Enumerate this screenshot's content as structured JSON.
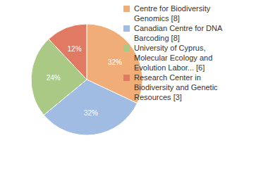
{
  "chart_data": {
    "type": "pie",
    "categories": [
      "Centre for Biodiversity Genomics [8]",
      "Canadian Centre for DNA Barcoding [8]",
      "University of Cyprus, Molecular Ecology and Evolution Labor... [6]",
      "Research Center in Biodiversity and Genetic Resources [3]"
    ],
    "values": [
      32,
      32,
      24,
      12
    ],
    "value_labels": [
      "32%",
      "32%",
      "24%",
      "12%"
    ],
    "colors": [
      "#f0ad78",
      "#a0bce2",
      "#a9c984",
      "#e17a62"
    ],
    "data_labels": true,
    "legend": "right"
  }
}
